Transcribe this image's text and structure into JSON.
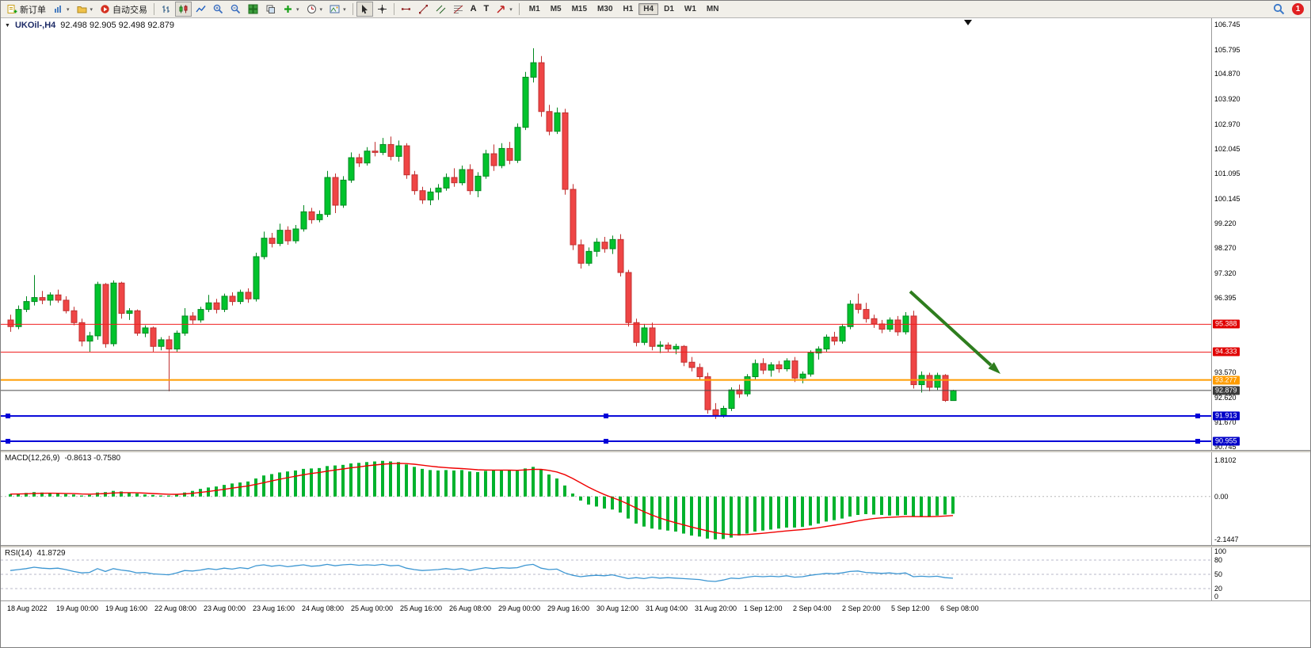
{
  "toolbar": {
    "new_order_label": "新订单",
    "auto_trading_label": "自动交易",
    "timeframes": [
      "M1",
      "M5",
      "M15",
      "M30",
      "H1",
      "H4",
      "D1",
      "W1",
      "MN"
    ],
    "active_timeframe": "H4",
    "notification_count": "1"
  },
  "icons": {
    "dropdown": "▾",
    "collapse": "▼",
    "text_tool": "A",
    "label_tool": "T"
  },
  "chart": {
    "symbol": "UKOil-,H4",
    "ohlc": "92.498 92.905 92.498 92.879",
    "price_axis_ticks": [
      "106.745",
      "105.795",
      "104.870",
      "103.920",
      "102.970",
      "102.045",
      "101.095",
      "100.145",
      "99.220",
      "98.270",
      "97.320",
      "96.395",
      "93.570",
      "92.620",
      "91.670",
      "90.745"
    ],
    "hlines": [
      {
        "price": "95.388",
        "color": "#f02020",
        "width": 1,
        "badge_bg": "#e00000"
      },
      {
        "price": "94.333",
        "color": "#f02020",
        "width": 1,
        "badge_bg": "#e00000"
      },
      {
        "price": "93.277",
        "color": "#ff9c00",
        "width": 2,
        "badge_bg": "#ff9c00"
      },
      {
        "price": "92.879",
        "color": "#4a4a4a",
        "width": 1,
        "badge_bg": "#3c3c3c"
      },
      {
        "price": "91.913",
        "color": "#0000d8",
        "width": 2,
        "badge_bg": "#0000c8",
        "handles": true
      },
      {
        "price": "90.955",
        "color": "#0000d8",
        "width": 2,
        "badge_bg": "#0000c8",
        "handles": true
      }
    ]
  },
  "macd": {
    "label": "MACD(12,26,9)",
    "values": "-0.8613 -0.7580",
    "axis_ticks": [
      "1.8102",
      "0.00",
      "-2.1447"
    ]
  },
  "rsi": {
    "label": "RSI(14)",
    "value": "41.8729",
    "axis_ticks": [
      "100",
      "80",
      "50",
      "20",
      "0"
    ],
    "levels": [
      80,
      50,
      20
    ]
  },
  "time_axis": [
    "18 Aug 2022",
    "19 Aug 00:00",
    "19 Aug 16:00",
    "22 Aug 08:00",
    "23 Aug 00:00",
    "23 Aug 16:00",
    "24 Aug 08:00",
    "25 Aug 00:00",
    "25 Aug 16:00",
    "26 Aug 08:00",
    "29 Aug 00:00",
    "29 Aug 16:00",
    "30 Aug 12:00",
    "31 Aug 04:00",
    "31 Aug 20:00",
    "1 Sep 12:00",
    "2 Sep 04:00",
    "2 Sep 20:00",
    "5 Sep 12:00",
    "6 Sep 08:00"
  ],
  "colors": {
    "bull": "#00c32c",
    "bull_border": "#008920",
    "bear": "#ef4545",
    "bear_border": "#c03030",
    "macd_bar": "#00b22d",
    "macd_signal": "#f00000",
    "rsi_line": "#3c96d2",
    "arrow": "#2e7d1e"
  },
  "chart_data": {
    "type": "candlestick",
    "candles": [
      [
        95.55,
        95.75,
        95.1,
        95.3
      ],
      [
        95.3,
        96.1,
        95.2,
        95.95
      ],
      [
        95.95,
        96.45,
        95.85,
        96.25
      ],
      [
        96.25,
        97.25,
        96.1,
        96.4
      ],
      [
        96.4,
        96.65,
        96.15,
        96.3
      ],
      [
        96.3,
        96.6,
        96.1,
        96.5
      ],
      [
        96.5,
        96.7,
        96.2,
        96.3
      ],
      [
        96.3,
        96.45,
        95.8,
        95.9
      ],
      [
        95.9,
        96.05,
        95.35,
        95.45
      ],
      [
        95.45,
        95.6,
        94.55,
        94.75
      ],
      [
        94.75,
        95.1,
        94.35,
        94.95
      ],
      [
        94.95,
        97.0,
        94.8,
        96.9
      ],
      [
        96.9,
        96.95,
        94.5,
        94.65
      ],
      [
        94.65,
        97.05,
        94.55,
        96.95
      ],
      [
        96.95,
        97.0,
        95.6,
        95.8
      ],
      [
        95.8,
        96.0,
        95.55,
        95.9
      ],
      [
        95.9,
        95.95,
        94.95,
        95.05
      ],
      [
        95.05,
        95.35,
        94.9,
        95.25
      ],
      [
        95.25,
        95.3,
        94.35,
        94.55
      ],
      [
        94.55,
        94.9,
        94.4,
        94.8
      ],
      [
        94.8,
        94.95,
        92.85,
        94.45
      ],
      [
        94.45,
        95.15,
        94.35,
        95.05
      ],
      [
        95.05,
        96.0,
        94.95,
        95.7
      ],
      [
        95.7,
        95.85,
        95.4,
        95.55
      ],
      [
        95.55,
        96.05,
        95.45,
        95.95
      ],
      [
        95.95,
        96.5,
        95.85,
        96.2
      ],
      [
        96.2,
        96.35,
        95.8,
        95.95
      ],
      [
        95.95,
        96.55,
        95.85,
        96.45
      ],
      [
        96.45,
        96.6,
        96.1,
        96.25
      ],
      [
        96.25,
        96.7,
        96.15,
        96.6
      ],
      [
        96.6,
        96.75,
        96.2,
        96.35
      ],
      [
        96.35,
        98.1,
        96.25,
        97.95
      ],
      [
        97.95,
        98.9,
        97.85,
        98.65
      ],
      [
        98.65,
        98.85,
        98.3,
        98.45
      ],
      [
        98.45,
        99.2,
        98.35,
        98.95
      ],
      [
        98.95,
        99.1,
        98.4,
        98.55
      ],
      [
        98.55,
        99.15,
        98.45,
        99.0
      ],
      [
        99.0,
        99.9,
        98.9,
        99.65
      ],
      [
        99.65,
        99.8,
        99.2,
        99.35
      ],
      [
        99.35,
        99.7,
        99.25,
        99.55
      ],
      [
        99.55,
        101.2,
        99.45,
        100.95
      ],
      [
        100.95,
        101.1,
        99.6,
        99.9
      ],
      [
        99.9,
        101.0,
        99.8,
        100.85
      ],
      [
        100.85,
        101.9,
        100.75,
        101.7
      ],
      [
        101.7,
        101.85,
        101.35,
        101.5
      ],
      [
        101.5,
        102.1,
        101.4,
        101.95
      ],
      [
        101.95,
        102.3,
        101.75,
        101.9
      ],
      [
        101.9,
        102.45,
        101.8,
        102.2
      ],
      [
        102.2,
        102.5,
        101.6,
        101.75
      ],
      [
        101.75,
        102.35,
        101.55,
        102.15
      ],
      [
        102.15,
        102.25,
        100.9,
        101.05
      ],
      [
        101.05,
        101.2,
        100.3,
        100.45
      ],
      [
        100.45,
        100.6,
        99.95,
        100.1
      ],
      [
        100.1,
        100.55,
        99.9,
        100.4
      ],
      [
        100.4,
        100.7,
        100.1,
        100.55
      ],
      [
        100.55,
        101.1,
        100.45,
        100.95
      ],
      [
        100.95,
        101.3,
        100.6,
        100.75
      ],
      [
        100.75,
        101.4,
        100.65,
        101.25
      ],
      [
        101.25,
        101.45,
        100.3,
        100.45
      ],
      [
        100.45,
        101.15,
        100.2,
        101.0
      ],
      [
        101.0,
        102.0,
        100.9,
        101.85
      ],
      [
        101.85,
        102.2,
        101.2,
        101.4
      ],
      [
        101.4,
        102.25,
        101.3,
        102.05
      ],
      [
        102.05,
        102.3,
        101.45,
        101.6
      ],
      [
        101.6,
        103.0,
        101.5,
        102.85
      ],
      [
        102.85,
        104.95,
        102.75,
        104.75
      ],
      [
        104.75,
        105.85,
        104.55,
        105.3
      ],
      [
        105.3,
        105.55,
        103.25,
        103.45
      ],
      [
        103.45,
        103.7,
        102.55,
        102.7
      ],
      [
        102.7,
        103.6,
        102.6,
        103.4
      ],
      [
        103.4,
        103.55,
        100.3,
        100.5
      ],
      [
        100.5,
        100.7,
        98.2,
        98.4
      ],
      [
        98.4,
        98.6,
        97.5,
        97.7
      ],
      [
        97.7,
        98.3,
        97.6,
        98.15
      ],
      [
        98.15,
        98.65,
        97.95,
        98.5
      ],
      [
        98.5,
        98.7,
        98.1,
        98.25
      ],
      [
        98.25,
        98.75,
        98.05,
        98.6
      ],
      [
        98.6,
        98.8,
        97.2,
        97.35
      ],
      [
        97.35,
        97.45,
        95.3,
        95.45
      ],
      [
        95.45,
        95.6,
        94.55,
        94.7
      ],
      [
        94.7,
        95.4,
        94.6,
        95.25
      ],
      [
        95.25,
        95.45,
        94.4,
        94.55
      ],
      [
        94.55,
        94.75,
        94.3,
        94.6
      ],
      [
        94.6,
        94.7,
        94.35,
        94.45
      ],
      [
        94.45,
        94.65,
        94.25,
        94.55
      ],
      [
        94.55,
        94.6,
        93.8,
        93.95
      ],
      [
        93.95,
        94.15,
        93.6,
        93.75
      ],
      [
        93.75,
        93.9,
        93.25,
        93.4
      ],
      [
        93.4,
        93.55,
        92.0,
        92.15
      ],
      [
        92.15,
        92.4,
        91.8,
        91.95
      ],
      [
        91.95,
        92.3,
        91.85,
        92.2
      ],
      [
        92.2,
        93.0,
        92.1,
        92.9
      ],
      [
        92.9,
        93.1,
        92.6,
        92.75
      ],
      [
        92.75,
        93.5,
        92.65,
        93.4
      ],
      [
        93.4,
        94.05,
        93.3,
        93.9
      ],
      [
        93.9,
        94.1,
        93.5,
        93.65
      ],
      [
        93.65,
        93.95,
        93.4,
        93.85
      ],
      [
        93.85,
        94.0,
        93.55,
        93.7
      ],
      [
        93.7,
        94.1,
        93.6,
        94.0
      ],
      [
        94.0,
        94.15,
        93.2,
        93.35
      ],
      [
        93.35,
        93.6,
        93.15,
        93.5
      ],
      [
        93.5,
        94.4,
        93.4,
        94.3
      ],
      [
        94.3,
        94.55,
        94.05,
        94.45
      ],
      [
        94.45,
        95.0,
        94.35,
        94.9
      ],
      [
        94.9,
        95.1,
        94.6,
        94.75
      ],
      [
        94.75,
        95.4,
        94.65,
        95.3
      ],
      [
        95.3,
        96.3,
        95.2,
        96.15
      ],
      [
        96.15,
        96.55,
        95.8,
        95.95
      ],
      [
        95.95,
        96.2,
        95.45,
        95.6
      ],
      [
        95.6,
        95.75,
        95.25,
        95.4
      ],
      [
        95.4,
        95.55,
        95.05,
        95.2
      ],
      [
        95.2,
        95.65,
        95.1,
        95.55
      ],
      [
        95.55,
        95.7,
        94.95,
        95.1
      ],
      [
        95.1,
        95.85,
        95.0,
        95.7
      ],
      [
        95.7,
        95.9,
        92.95,
        93.1
      ],
      [
        93.1,
        93.6,
        92.8,
        93.45
      ],
      [
        93.45,
        93.55,
        92.85,
        93.0
      ],
      [
        93.0,
        93.55,
        92.9,
        93.45
      ],
      [
        93.45,
        93.5,
        92.45,
        92.5
      ],
      [
        92.498,
        92.905,
        92.498,
        92.879
      ]
    ],
    "macd_histogram": [
      0.12,
      0.15,
      0.18,
      0.22,
      0.2,
      0.18,
      0.15,
      0.12,
      0.1,
      0.05,
      0.08,
      0.2,
      0.22,
      0.28,
      0.25,
      0.2,
      0.15,
      0.1,
      0.08,
      0.05,
      0.05,
      0.1,
      0.2,
      0.28,
      0.38,
      0.45,
      0.5,
      0.58,
      0.65,
      0.7,
      0.75,
      0.9,
      1.05,
      1.12,
      1.2,
      1.25,
      1.3,
      1.38,
      1.4,
      1.42,
      1.52,
      1.55,
      1.58,
      1.65,
      1.68,
      1.72,
      1.75,
      1.78,
      1.75,
      1.72,
      1.6,
      1.48,
      1.38,
      1.32,
      1.3,
      1.32,
      1.3,
      1.32,
      1.25,
      1.22,
      1.28,
      1.3,
      1.32,
      1.3,
      1.28,
      1.4,
      1.48,
      1.35,
      1.1,
      0.9,
      0.55,
      0.15,
      -0.2,
      -0.4,
      -0.5,
      -0.6,
      -0.65,
      -0.8,
      -1.1,
      -1.35,
      -1.5,
      -1.6,
      -1.65,
      -1.7,
      -1.75,
      -1.85,
      -1.95,
      -2.0,
      -2.1,
      -2.14,
      -2.12,
      -2.05,
      -1.95,
      -1.85,
      -1.75,
      -1.7,
      -1.65,
      -1.6,
      -1.55,
      -1.55,
      -1.52,
      -1.45,
      -1.35,
      -1.25,
      -1.18,
      -1.1,
      -1.0,
      -0.92,
      -0.88,
      -0.9,
      -0.92,
      -0.95,
      -0.95,
      -0.92,
      -1.0,
      -1.02,
      -1.0,
      -0.95,
      -0.9,
      -0.86
    ],
    "rsi_values": [
      58,
      60,
      62,
      65,
      63,
      62,
      63,
      60,
      56,
      53,
      54,
      62,
      56,
      62,
      59,
      57,
      53,
      54,
      51,
      50,
      49,
      53,
      58,
      57,
      59,
      62,
      60,
      63,
      61,
      64,
      62,
      68,
      70,
      67,
      69,
      66,
      68,
      70,
      67,
      68,
      71,
      68,
      70,
      71,
      69,
      70,
      69,
      71,
      68,
      69,
      63,
      60,
      58,
      59,
      60,
      62,
      60,
      62,
      58,
      61,
      64,
      62,
      64,
      63,
      64,
      69,
      71,
      63,
      60,
      61,
      53,
      48,
      45,
      47,
      48,
      47,
      49,
      45,
      41,
      43,
      41,
      44,
      42,
      43,
      42,
      41,
      40,
      39,
      36,
      35,
      38,
      42,
      41,
      44,
      46,
      45,
      46,
      45,
      47,
      44,
      45,
      48,
      50,
      52,
      51,
      53,
      56,
      57,
      54,
      53,
      52,
      53,
      51,
      53,
      45,
      46,
      45,
      46,
      43,
      41.87
    ]
  }
}
